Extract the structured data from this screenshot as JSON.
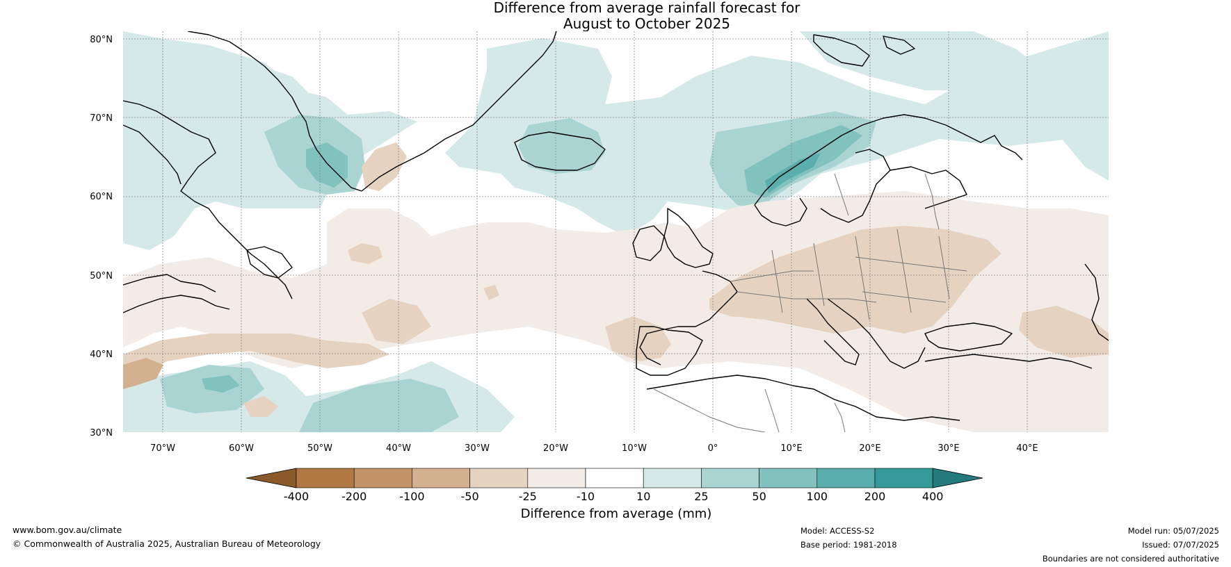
{
  "title": {
    "line1": "Difference from average rainfall forecast for",
    "line2": "August to October 2025"
  },
  "axes": {
    "lat_ticks": [
      "80°N",
      "70°N",
      "60°N",
      "50°N",
      "40°N",
      "30°N"
    ],
    "lon_ticks": [
      "70°W",
      "60°W",
      "50°W",
      "40°W",
      "30°W",
      "20°W",
      "10°W",
      "0°",
      "10°E",
      "20°E",
      "30°E",
      "40°E"
    ]
  },
  "colorbar": {
    "tick_labels": [
      "-400",
      "-200",
      "-100",
      "-50",
      "-25",
      "-10",
      "10",
      "25",
      "50",
      "100",
      "200",
      "400"
    ],
    "colors": [
      "#8b5a2b",
      "#b07843",
      "#c29267",
      "#d3b08f",
      "#e6d2c1",
      "#f3ece6",
      "#ffffff",
      "#d5e9e8",
      "#a9d4d2",
      "#81c1be",
      "#5aaead",
      "#35999a",
      "#257a7b"
    ],
    "label": "Difference from average (mm)"
  },
  "footer": {
    "url": "www.bom.gov.au/climate",
    "copyright": "© Commonwealth of Australia 2025, Australian Bureau of Meteorology",
    "model": "Model: ACCESS-S2",
    "base_period": "Base period: 1981-2018",
    "model_run": "Model run: 05/07/2025",
    "issued": "Issued: 07/07/2025",
    "disclaimer": "Boundaries are not considered authoritative"
  }
}
